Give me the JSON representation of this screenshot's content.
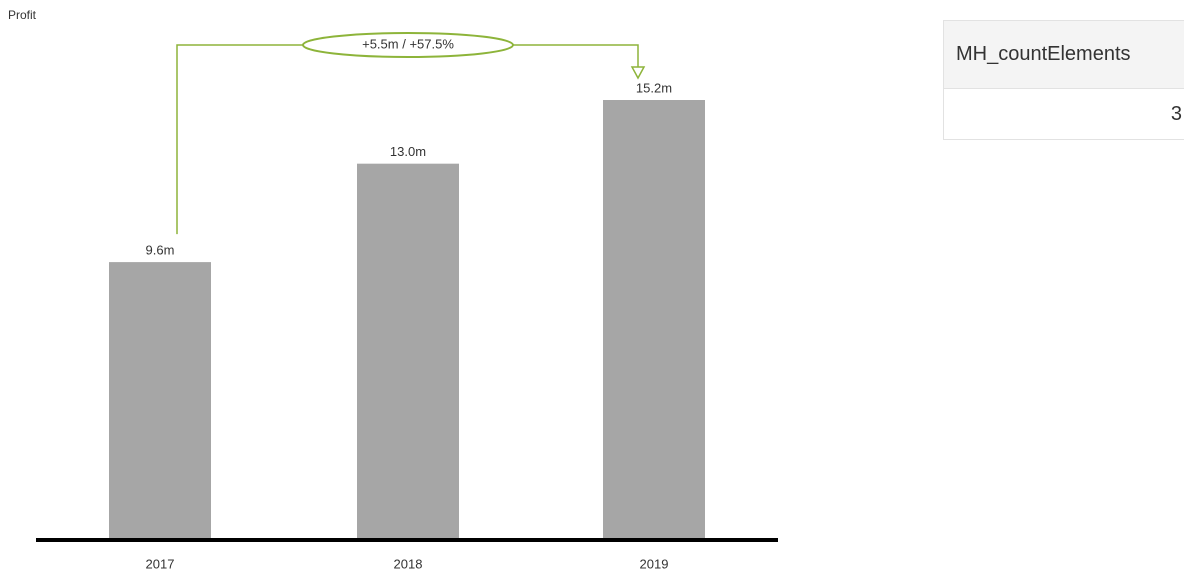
{
  "chart_data": {
    "type": "bar",
    "title": "Profit",
    "categories": [
      "2017",
      "2018",
      "2019"
    ],
    "values": [
      9.6,
      13.0,
      15.2
    ],
    "value_labels": [
      "9.6m",
      "13.0m",
      "15.2m"
    ],
    "color": "#a6a6a6",
    "annotation": "+5.5m / +57.5%",
    "annotation_color": "#8db43a"
  },
  "table": {
    "header": "MH_countElements",
    "rows": [
      [
        3
      ]
    ]
  }
}
